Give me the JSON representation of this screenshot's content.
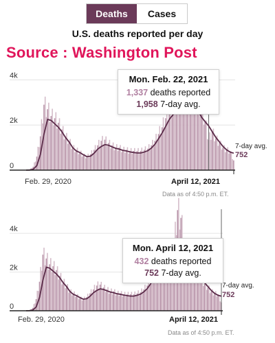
{
  "toggle": {
    "deaths_label": "Deaths",
    "cases_label": "Cases",
    "active": "deaths"
  },
  "title": "U.S. deaths reported per day",
  "source": "Source : Washington Post",
  "charts": [
    {
      "tooltip": {
        "date": "Mon. Feb. 22, 2021",
        "deaths": "1,337",
        "deaths_text": "deaths reported",
        "avg": "1,958",
        "avg_text": "7-day avg."
      },
      "avg_label": "7-day avg.",
      "avg_value": "752",
      "x_start_label": "Feb. 29, 2020",
      "x_end_label": "April 12, 2021",
      "data_note": "Data as of 4:50 p.m. ET."
    },
    {
      "tooltip": {
        "date": "Mon. April 12, 2021",
        "deaths": "432",
        "deaths_text": "deaths reported",
        "avg": "752",
        "avg_text": "7-day avg."
      },
      "avg_label": "7-day avg.",
      "avg_value": "752",
      "x_start_label": "Feb. 29, 2020",
      "x_end_label": "April 12, 2021",
      "data_note": "Data as of 4:50 p.m. ET."
    }
  ],
  "chart_data": [
    {
      "type": "bar",
      "title": "U.S. deaths reported per day",
      "y_ticks": [
        "0",
        "2k",
        "4k"
      ],
      "ylim": [
        0,
        4500
      ],
      "x_range": [
        "2020-02-29",
        "2021-04-12"
      ],
      "series": [
        {
          "name": "deaths reported",
          "type": "bar"
        },
        {
          "name": "7-day avg.",
          "type": "line"
        }
      ],
      "x": [
        "2020-02-29",
        "2020-03-08",
        "2020-03-15",
        "2020-03-22",
        "2020-03-29",
        "2020-04-05",
        "2020-04-12",
        "2020-04-19",
        "2020-04-26",
        "2020-05-03",
        "2020-05-10",
        "2020-05-17",
        "2020-05-24",
        "2020-05-31",
        "2020-06-07",
        "2020-06-14",
        "2020-06-21",
        "2020-06-28",
        "2020-07-05",
        "2020-07-12",
        "2020-07-19",
        "2020-07-26",
        "2020-08-02",
        "2020-08-09",
        "2020-08-16",
        "2020-08-23",
        "2020-08-30",
        "2020-09-06",
        "2020-09-13",
        "2020-09-20",
        "2020-09-27",
        "2020-10-04",
        "2020-10-11",
        "2020-10-18",
        "2020-10-25",
        "2020-11-01",
        "2020-11-08",
        "2020-11-15",
        "2020-11-22",
        "2020-11-29",
        "2020-12-06",
        "2020-12-13",
        "2020-12-20",
        "2020-12-27",
        "2021-01-03",
        "2021-01-10",
        "2021-01-17",
        "2021-01-24",
        "2021-01-31",
        "2021-02-07",
        "2021-02-14",
        "2021-02-22",
        "2021-03-01",
        "2021-03-08",
        "2021-03-15",
        "2021-03-22",
        "2021-03-29",
        "2021-04-05",
        "2021-04-12"
      ],
      "deaths": [
        0,
        20,
        150,
        600,
        1500,
        2900,
        2700,
        2400,
        2300,
        2100,
        1800,
        1500,
        1300,
        1000,
        900,
        800,
        650,
        600,
        700,
        900,
        1100,
        1300,
        1350,
        1200,
        1100,
        1000,
        1000,
        900,
        900,
        850,
        850,
        850,
        850,
        900,
        950,
        1100,
        1300,
        1600,
        1900,
        2300,
        2600,
        2800,
        3000,
        3200,
        3400,
        3600,
        3500,
        3300,
        3000,
        2700,
        2200,
        1337,
        1700,
        1400,
        1200,
        1000,
        900,
        850,
        432
      ],
      "avg": [
        0,
        5,
        40,
        200,
        700,
        1600,
        2250,
        2200,
        2050,
        1900,
        1700,
        1450,
        1250,
        1000,
        850,
        780,
        680,
        600,
        620,
        750,
        930,
        1050,
        1130,
        1100,
        1030,
        970,
        930,
        880,
        850,
        810,
        780,
        760,
        760,
        800,
        860,
        980,
        1150,
        1400,
        1650,
        1950,
        2250,
        2450,
        2600,
        2700,
        2900,
        3050,
        3100,
        2950,
        2650,
        2350,
        2150,
        1958,
        1700,
        1450,
        1250,
        1050,
        900,
        800,
        752
      ]
    },
    {
      "type": "bar",
      "title": "U.S. deaths reported per day",
      "y_ticks": [
        "0",
        "2k",
        "4k"
      ],
      "ylim": [
        0,
        5600
      ],
      "x_range": [
        "2020-02-29",
        "2021-04-12"
      ],
      "series": [
        {
          "name": "deaths reported",
          "type": "bar"
        },
        {
          "name": "7-day avg.",
          "type": "line"
        }
      ],
      "x": [
        "2020-02-29",
        "2020-03-08",
        "2020-03-15",
        "2020-03-22",
        "2020-03-29",
        "2020-04-05",
        "2020-04-12",
        "2020-04-19",
        "2020-04-26",
        "2020-05-03",
        "2020-05-10",
        "2020-05-17",
        "2020-05-24",
        "2020-05-31",
        "2020-06-07",
        "2020-06-14",
        "2020-06-21",
        "2020-06-28",
        "2020-07-05",
        "2020-07-12",
        "2020-07-19",
        "2020-07-26",
        "2020-08-02",
        "2020-08-09",
        "2020-08-16",
        "2020-08-23",
        "2020-08-30",
        "2020-09-06",
        "2020-09-13",
        "2020-09-20",
        "2020-09-27",
        "2020-10-04",
        "2020-10-11",
        "2020-10-18",
        "2020-10-25",
        "2020-11-01",
        "2020-11-08",
        "2020-11-15",
        "2020-11-22",
        "2020-11-29",
        "2020-12-06",
        "2020-12-13",
        "2020-12-20",
        "2020-12-27",
        "2021-01-03",
        "2021-01-10",
        "2021-01-17",
        "2021-01-24",
        "2021-01-31",
        "2021-02-07",
        "2021-02-14",
        "2021-02-22",
        "2021-03-01",
        "2021-03-08",
        "2021-03-15",
        "2021-03-22",
        "2021-03-29",
        "2021-04-05",
        "2021-04-12"
      ],
      "deaths": [
        0,
        20,
        150,
        600,
        1500,
        2900,
        2700,
        2400,
        2300,
        2100,
        1800,
        1500,
        1300,
        1000,
        900,
        800,
        650,
        600,
        700,
        900,
        1100,
        1300,
        1350,
        1200,
        1100,
        1000,
        1000,
        900,
        900,
        850,
        850,
        850,
        850,
        900,
        950,
        1100,
        1300,
        1600,
        1900,
        2300,
        2600,
        2800,
        3000,
        3200,
        3400,
        5200,
        4800,
        3300,
        3000,
        2700,
        2200,
        2000,
        1700,
        1400,
        1200,
        1000,
        900,
        850,
        432
      ],
      "avg": [
        0,
        5,
        40,
        200,
        700,
        1600,
        2250,
        2200,
        2050,
        1900,
        1700,
        1450,
        1250,
        1000,
        850,
        780,
        680,
        600,
        620,
        750,
        930,
        1050,
        1130,
        1100,
        1030,
        970,
        930,
        880,
        850,
        810,
        780,
        760,
        760,
        800,
        860,
        980,
        1150,
        1400,
        1650,
        1950,
        2250,
        2450,
        2600,
        2700,
        2900,
        3050,
        3100,
        2950,
        2650,
        2350,
        2150,
        1958,
        1700,
        1450,
        1250,
        1050,
        900,
        800,
        752
      ]
    }
  ]
}
